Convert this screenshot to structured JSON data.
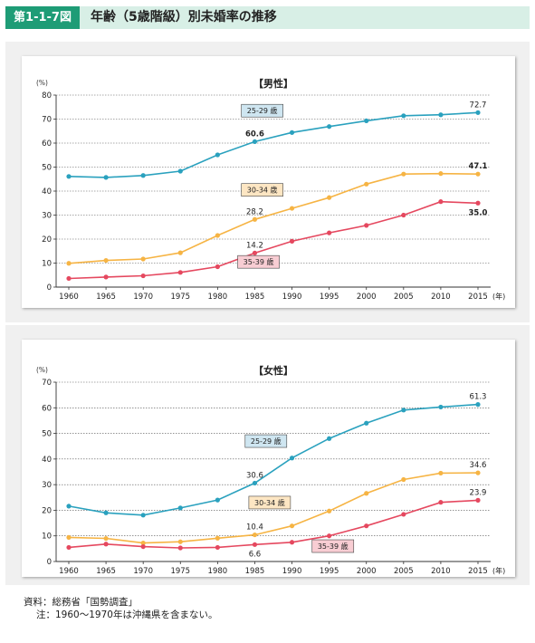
{
  "header": {
    "figure_label": "第1-1-7図",
    "title": "年齢（5歳階級）別未婚率の推移"
  },
  "footer": {
    "source": "資料：総務省「国勢調査」",
    "note": "注：1960〜1970年は沖縄県を含まない。"
  },
  "colors": {
    "accent": "#1e9c76",
    "header_bg": "#d8efe6",
    "series_25_29": "#2aa1be",
    "series_30_34": "#f6b444",
    "series_35_39": "#e5485f"
  },
  "chart_data": [
    {
      "type": "line",
      "title": "【男性】",
      "ylabel": "(%)",
      "x_unit": "(年)",
      "ylim": [
        0,
        80
      ],
      "yticks": [
        0,
        10,
        20,
        30,
        40,
        50,
        60,
        70,
        80
      ],
      "grid": true,
      "categories": [
        "1960",
        "1965",
        "1970",
        "1975",
        "1980",
        "1985",
        "1990",
        "1995",
        "2000",
        "2005",
        "2010",
        "2015"
      ],
      "series": [
        {
          "name": "25-29 歳",
          "color": "#2aa1be",
          "label_fill": "#cfe6f1",
          "values": [
            46.1,
            45.7,
            46.5,
            48.3,
            55.1,
            60.6,
            64.4,
            66.9,
            69.3,
            71.4,
            71.8,
            72.7
          ]
        },
        {
          "name": "30-34 歳",
          "color": "#f6b444",
          "label_fill": "#fde6c3",
          "values": [
            9.9,
            11.1,
            11.7,
            14.3,
            21.5,
            28.2,
            32.8,
            37.3,
            42.9,
            47.1,
            47.3,
            47.1
          ]
        },
        {
          "name": "35-39 歳",
          "color": "#e5485f",
          "label_fill": "#f8cdd3",
          "values": [
            3.6,
            4.2,
            4.7,
            6.1,
            8.5,
            14.2,
            19.1,
            22.6,
            25.7,
            30.0,
            35.6,
            35.0
          ]
        }
      ],
      "annotations": [
        {
          "series": 0,
          "index": 5,
          "text": "60.6",
          "bold": true,
          "pos": "above"
        },
        {
          "series": 0,
          "index": 11,
          "text": "72.7",
          "bold": false,
          "pos": "above"
        },
        {
          "series": 1,
          "index": 5,
          "text": "28.2",
          "bold": false,
          "pos": "above"
        },
        {
          "series": 1,
          "index": 11,
          "text": "47.1",
          "bold": true,
          "pos": "above"
        },
        {
          "series": 2,
          "index": 5,
          "text": "14.2",
          "bold": false,
          "pos": "above"
        },
        {
          "series": 2,
          "index": 11,
          "text": "35.0",
          "bold": true,
          "pos": "below"
        }
      ],
      "legend_boxes": [
        {
          "series": 0,
          "x": 1986,
          "y": 73.5
        },
        {
          "series": 1,
          "x": 1986,
          "y": 40.5
        },
        {
          "series": 2,
          "x": 1985.5,
          "y": 10.5
        }
      ]
    },
    {
      "type": "line",
      "title": "【女性】",
      "ylabel": "(%)",
      "x_unit": "(年)",
      "ylim": [
        0,
        70
      ],
      "yticks": [
        0,
        10,
        20,
        30,
        40,
        50,
        60,
        70
      ],
      "grid": true,
      "categories": [
        "1960",
        "1965",
        "1970",
        "1975",
        "1980",
        "1985",
        "1990",
        "1995",
        "2000",
        "2005",
        "2010",
        "2015"
      ],
      "series": [
        {
          "name": "25-29 歳",
          "color": "#2aa1be",
          "label_fill": "#cfe6f1",
          "values": [
            21.6,
            19.0,
            18.1,
            20.9,
            24.0,
            30.6,
            40.4,
            48.0,
            54.0,
            59.1,
            60.3,
            61.3
          ]
        },
        {
          "name": "30-34 歳",
          "color": "#f6b444",
          "label_fill": "#fde6c3",
          "values": [
            9.4,
            9.0,
            7.2,
            7.7,
            9.1,
            10.4,
            13.9,
            19.7,
            26.6,
            32.0,
            34.5,
            34.6
          ]
        },
        {
          "name": "35-39 歳",
          "color": "#e5485f",
          "label_fill": "#f8cdd3",
          "values": [
            5.5,
            6.8,
            5.8,
            5.3,
            5.5,
            6.6,
            7.5,
            10.0,
            13.9,
            18.4,
            23.1,
            23.9
          ]
        }
      ],
      "annotations": [
        {
          "series": 0,
          "index": 5,
          "text": "30.6",
          "bold": false,
          "pos": "above"
        },
        {
          "series": 0,
          "index": 11,
          "text": "61.3",
          "bold": false,
          "pos": "above"
        },
        {
          "series": 1,
          "index": 5,
          "text": "10.4",
          "bold": false,
          "pos": "above"
        },
        {
          "series": 1,
          "index": 11,
          "text": "34.6",
          "bold": false,
          "pos": "above"
        },
        {
          "series": 2,
          "index": 5,
          "text": "6.6",
          "bold": false,
          "pos": "below"
        },
        {
          "series": 2,
          "index": 11,
          "text": "23.9",
          "bold": false,
          "pos": "above"
        }
      ],
      "legend_boxes": [
        {
          "series": 0,
          "x": 1986.5,
          "y": 47
        },
        {
          "series": 1,
          "x": 1987,
          "y": 23
        },
        {
          "series": 2,
          "x": 1995.5,
          "y": 6
        }
      ]
    }
  ]
}
